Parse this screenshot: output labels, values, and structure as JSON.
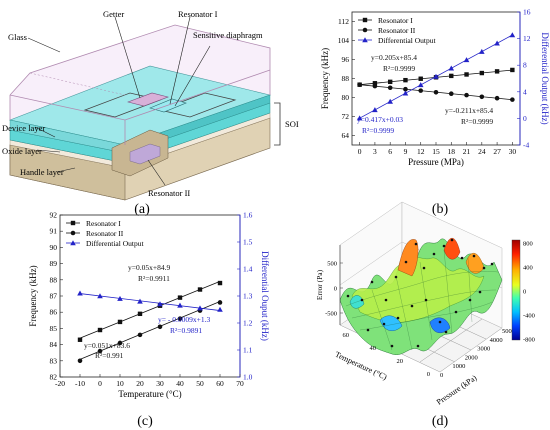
{
  "panel_labels": {
    "a": "(a)",
    "b": "(b)",
    "c": "(c)",
    "d": "(d)"
  },
  "diagram": {
    "labels": {
      "getter": "Getter",
      "resonator1": "Resonator I",
      "glass": "Glass",
      "diaphragm": "Sensitive diaphragm",
      "soi": "SOI",
      "device": "Device layer",
      "oxide": "Oxide layer",
      "handle": "Handle layer",
      "resonator2": "Resonator II"
    }
  },
  "colors": {
    "blue": "#2323c8",
    "black": "#111111",
    "glass_edge": "#b08ab0",
    "device": "#5fd6d6",
    "handle": "#d8c8a8"
  },
  "chart_data": [
    {
      "id": "b",
      "type": "scatter",
      "xlabel": "Pressure (MPa)",
      "ylabel": "Frequency (kHz)",
      "y2label": "Differential Output (kHz)",
      "xlim": [
        -1.5,
        31.5
      ],
      "ylim": [
        60,
        116
      ],
      "y2lim": [
        -4,
        16
      ],
      "xticks": [
        0,
        3,
        6,
        9,
        12,
        15,
        18,
        21,
        24,
        27,
        30
      ],
      "yticks": [
        64,
        72,
        80,
        88,
        96,
        104,
        112
      ],
      "y2ticks": [
        -4,
        0,
        4,
        8,
        12,
        16
      ],
      "legend": [
        "Resonator I",
        "Resonator II",
        "Differential Output"
      ],
      "legend_position": "top-left",
      "series": [
        {
          "name": "Resonator I",
          "marker": "square",
          "axis": "left",
          "x": [
            0,
            3,
            6,
            9,
            12,
            15,
            18,
            21,
            24,
            27,
            30
          ],
          "y": [
            85.4,
            86.0,
            86.6,
            87.3,
            87.9,
            88.5,
            89.1,
            89.7,
            90.3,
            91.0,
            91.6
          ],
          "slope": 0.205,
          "intercept": 85.4
        },
        {
          "name": "Resonator II",
          "marker": "circle",
          "axis": "left",
          "x": [
            0,
            3,
            6,
            9,
            12,
            15,
            18,
            21,
            24,
            27,
            30
          ],
          "y": [
            85.4,
            84.8,
            84.1,
            83.5,
            82.9,
            82.2,
            81.6,
            81.0,
            80.3,
            79.7,
            79.1
          ],
          "slope": -0.211,
          "intercept": 85.4
        },
        {
          "name": "Differential Output",
          "marker": "triangle",
          "axis": "right",
          "x": [
            0,
            3,
            6,
            9,
            12,
            15,
            18,
            21,
            24,
            27,
            30
          ],
          "y": [
            0.03,
            1.28,
            2.53,
            3.78,
            5.03,
            6.29,
            7.54,
            8.79,
            10.04,
            11.29,
            12.54
          ],
          "slope": 0.417,
          "intercept": 0.03
        }
      ],
      "annotations": [
        {
          "text": "y=0.205x+85.4",
          "color": "black"
        },
        {
          "text": "R²=0.9999",
          "color": "black"
        },
        {
          "text": "y=-0.211x+85.4",
          "color": "black"
        },
        {
          "text": "R²=0.9999",
          "color": "black"
        },
        {
          "text": "y=0.417x+0.03",
          "color": "blue"
        },
        {
          "text": "R²=0.9999",
          "color": "blue"
        }
      ]
    },
    {
      "id": "c",
      "type": "scatter",
      "xlabel": "Temperature (°C)",
      "ylabel": "Frequency (kHz)",
      "y2label": "Differential Ouput (kHz)",
      "xlim": [
        -20,
        70
      ],
      "ylim": [
        82,
        92
      ],
      "y2lim": [
        1.0,
        1.6
      ],
      "xticks": [
        -20,
        -10,
        0,
        10,
        20,
        30,
        40,
        50,
        60,
        70
      ],
      "yticks": [
        82,
        83,
        84,
        85,
        86,
        87,
        88,
        89,
        90,
        91,
        92
      ],
      "y2ticks": [
        1.0,
        1.1,
        1.2,
        1.3,
        1.4,
        1.5,
        1.6
      ],
      "legend": [
        "Resonator I",
        "Resonator II",
        "Differential Output"
      ],
      "legend_position": "top-left",
      "series": [
        {
          "name": "Resonator I",
          "marker": "square",
          "axis": "left",
          "x": [
            -10,
            0,
            10,
            20,
            30,
            40,
            50,
            60
          ],
          "y": [
            84.3,
            84.9,
            85.4,
            85.9,
            86.4,
            86.9,
            87.4,
            87.8
          ],
          "slope": 0.05,
          "intercept": 84.9
        },
        {
          "name": "Resonator II",
          "marker": "circle",
          "axis": "left",
          "x": [
            -10,
            0,
            10,
            20,
            30,
            40,
            50,
            60
          ],
          "y": [
            83.0,
            83.6,
            84.1,
            84.6,
            85.1,
            85.6,
            86.1,
            86.6
          ],
          "slope": 0.051,
          "intercept": 83.6
        },
        {
          "name": "Differential Output",
          "marker": "triangle",
          "axis": "right",
          "x": [
            -10,
            0,
            10,
            20,
            30,
            40,
            50,
            60
          ],
          "y": [
            1.31,
            1.3,
            1.29,
            1.28,
            1.27,
            1.265,
            1.255,
            1.25
          ],
          "slope": -0.0009,
          "intercept": 1.3
        }
      ],
      "annotations": [
        {
          "text": "y=0.05x+84.9",
          "color": "black"
        },
        {
          "text": "R²=0.9911",
          "color": "black"
        },
        {
          "text": "y= - 0.0009x+1.3",
          "color": "blue"
        },
        {
          "text": "R²=0.9891",
          "color": "blue"
        },
        {
          "text": "y=0.051x+83.6",
          "color": "black"
        },
        {
          "text": "R²=0.991",
          "color": "black"
        }
      ]
    },
    {
      "id": "d",
      "type": "surface3d",
      "xlabel": "Pressure (kPa)",
      "ylabel": "Temperature (°C)",
      "zlabel": "Error (Pa)",
      "xticks": [
        0,
        1000,
        2000,
        3000,
        4000,
        5000
      ],
      "yticks": [
        0,
        20,
        40,
        60
      ],
      "zticks": [
        -500,
        0,
        500
      ],
      "colorbar": {
        "ticks": [
          800,
          400,
          0,
          -400,
          -800
        ],
        "colors": [
          "#a00000",
          "#ff3000",
          "#ffb000",
          "#e0ff20",
          "#40ffb0",
          "#00c0ff",
          "#0040ff",
          "#000090"
        ]
      }
    }
  ]
}
